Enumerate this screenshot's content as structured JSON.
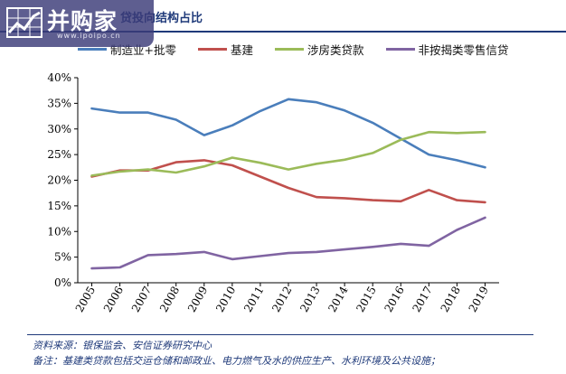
{
  "header": {
    "logo_text": "并购家",
    "logo_url": "www.ipoipo.cn",
    "title": "贷投向结构占比"
  },
  "colors": {
    "manufacturing": "#4a7ebb",
    "infrastructure": "#c0504d",
    "real_estate": "#9bbb59",
    "retail": "#8064a2"
  },
  "chart_data": {
    "type": "line",
    "x": [
      "2005",
      "2006",
      "2007",
      "2008",
      "2009",
      "2010",
      "2011",
      "2012",
      "2013",
      "2014",
      "2015",
      "2016",
      "2017",
      "2018",
      "2019"
    ],
    "ylim": [
      0,
      40
    ],
    "yticks": [
      "0%",
      "5%",
      "10%",
      "15%",
      "20%",
      "25%",
      "30%",
      "35%",
      "40%"
    ],
    "legend_position": "top",
    "grid": false,
    "series": [
      {
        "name": "制造业+批零",
        "color": "#4a7ebb",
        "values": [
          34.0,
          33.2,
          33.2,
          31.8,
          28.8,
          30.7,
          33.5,
          35.8,
          35.2,
          33.6,
          31.2,
          28.1,
          25.0,
          23.9,
          22.5
        ]
      },
      {
        "name": "基建",
        "color": "#c0504d",
        "values": [
          20.7,
          21.9,
          21.9,
          23.5,
          23.9,
          22.9,
          20.7,
          18.5,
          16.7,
          16.5,
          16.1,
          15.9,
          18.1,
          16.1,
          15.7
        ]
      },
      {
        "name": "涉房类贷款",
        "color": "#9bbb59",
        "values": [
          20.9,
          21.7,
          22.1,
          21.5,
          22.7,
          24.4,
          23.4,
          22.1,
          23.2,
          24.0,
          25.3,
          27.9,
          29.4,
          29.2,
          29.4
        ]
      },
      {
        "name": "非按揭类零售信贷",
        "color": "#8064a2",
        "values": [
          2.8,
          3.0,
          5.4,
          5.6,
          6.0,
          4.6,
          5.2,
          5.8,
          6.0,
          6.5,
          7.0,
          7.6,
          7.2,
          10.3,
          12.7
        ]
      }
    ]
  },
  "footer": {
    "source": "资料来源：银保监会、安信证券研究中心",
    "note": "备注：基建类贷款包括交运仓储和邮政业、电力燃气及水的供应生产、水利环境及公共设施；"
  }
}
